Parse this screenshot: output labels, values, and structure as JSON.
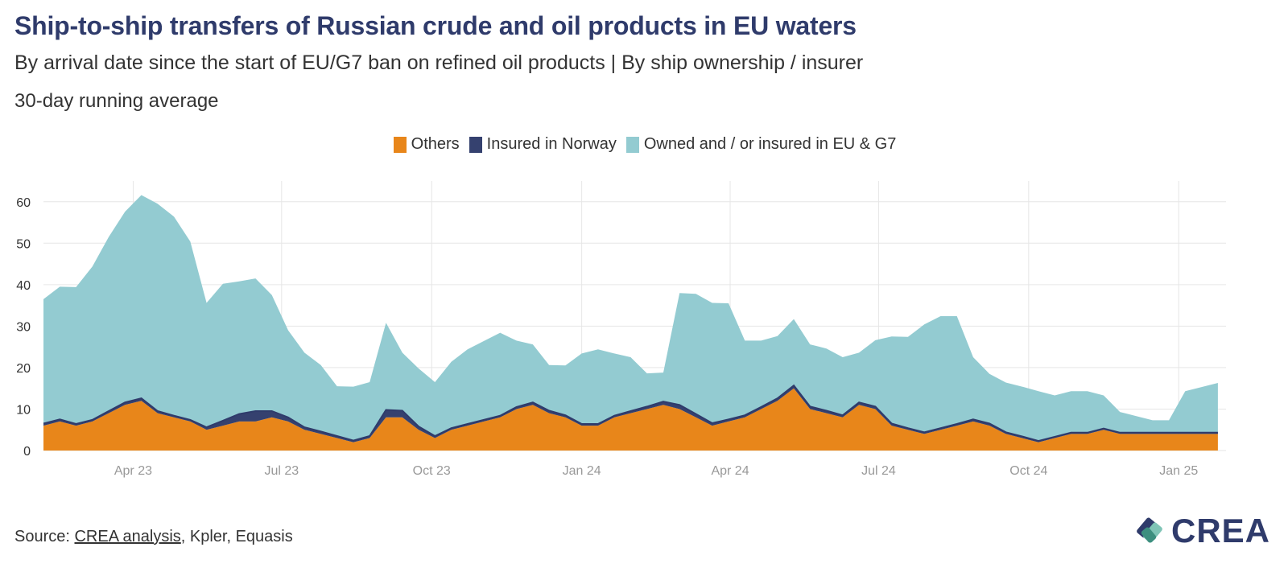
{
  "header": {
    "title": "Ship-to-ship transfers of Russian crude and oil products in EU waters",
    "subtitle": "By arrival date since the start of EU/G7 ban on refined oil products | By ship ownership / insurer",
    "note": "30-day running average"
  },
  "legend": [
    {
      "label": "Others",
      "color": "#e8861a"
    },
    {
      "label": "Insured in Norway",
      "color": "#35416f"
    },
    {
      "label": "Owned and / or insured in EU & G7",
      "color": "#93cbd1"
    }
  ],
  "footer": {
    "source_prefix": "Source: ",
    "source_link": "CREA analysis",
    "source_rest": ", Kpler, Equasis",
    "logo_text": "CREA"
  },
  "chart_data": {
    "type": "area",
    "stacked": true,
    "x": [
      "2023-02-05",
      "2023-02-15",
      "2023-02-25",
      "2023-03-07",
      "2023-03-17",
      "2023-03-27",
      "2023-04-06",
      "2023-04-16",
      "2023-04-26",
      "2023-05-06",
      "2023-05-16",
      "2023-05-26",
      "2023-06-05",
      "2023-06-15",
      "2023-06-25",
      "2023-07-05",
      "2023-07-15",
      "2023-07-25",
      "2023-08-04",
      "2023-08-14",
      "2023-08-24",
      "2023-09-03",
      "2023-09-13",
      "2023-09-23",
      "2023-10-03",
      "2023-10-13",
      "2023-10-23",
      "2023-11-02",
      "2023-11-12",
      "2023-11-22",
      "2023-12-02",
      "2023-12-12",
      "2023-12-22",
      "2024-01-01",
      "2024-01-11",
      "2024-01-21",
      "2024-01-31",
      "2024-02-10",
      "2024-02-20",
      "2024-03-01",
      "2024-03-11",
      "2024-03-21",
      "2024-03-31",
      "2024-04-10",
      "2024-04-20",
      "2024-04-30",
      "2024-05-10",
      "2024-05-20",
      "2024-05-30",
      "2024-06-09",
      "2024-06-19",
      "2024-06-29",
      "2024-07-09",
      "2024-07-19",
      "2024-07-29",
      "2024-08-08",
      "2024-08-18",
      "2024-08-28",
      "2024-09-07",
      "2024-09-17",
      "2024-09-27",
      "2024-10-07",
      "2024-10-17",
      "2024-10-27",
      "2024-11-06",
      "2024-11-16",
      "2024-11-26",
      "2024-12-06",
      "2024-12-16",
      "2024-12-26",
      "2025-01-05",
      "2025-01-15",
      "2025-01-25"
    ],
    "series": [
      {
        "name": "Others",
        "color": "#e8861a",
        "values": [
          6,
          7,
          6,
          7,
          9,
          11,
          12,
          9,
          8,
          7,
          5,
          6,
          7,
          7,
          8,
          7,
          5,
          4,
          3,
          2,
          3,
          8,
          8,
          5,
          3,
          5,
          6,
          7,
          8,
          10,
          11,
          9,
          8,
          6,
          6,
          8,
          9,
          10,
          11,
          10,
          8,
          6,
          7,
          8,
          10,
          12,
          15,
          10,
          9,
          8,
          11,
          10,
          6,
          5,
          4,
          5,
          6,
          7,
          6,
          4,
          3,
          2,
          3,
          4,
          4,
          5,
          4,
          4,
          4,
          4,
          4,
          4,
          4
        ]
      },
      {
        "name": "Insured in Norway",
        "color": "#35416f",
        "values": [
          0.5,
          0.5,
          0.4,
          0.4,
          0.5,
          0.6,
          0.6,
          0.5,
          0.4,
          0.4,
          0.6,
          1.2,
          1.8,
          2.5,
          1.5,
          1,
          0.6,
          0.6,
          0.5,
          0.4,
          0.5,
          1.8,
          1.6,
          0.8,
          0.5,
          0.4,
          0.4,
          0.4,
          0.4,
          0.5,
          0.6,
          0.6,
          0.5,
          0.4,
          0.4,
          0.4,
          0.5,
          0.6,
          0.8,
          1,
          0.8,
          0.6,
          0.5,
          0.5,
          0.5,
          0.6,
          0.7,
          0.6,
          0.6,
          0.5,
          0.6,
          0.6,
          0.5,
          0.4,
          0.4,
          0.4,
          0.4,
          0.5,
          0.5,
          0.4,
          0.4,
          0.3,
          0.3,
          0.3,
          0.3,
          0.3,
          0.3,
          0.3,
          0.3,
          0.3,
          0.3,
          0.3,
          0.3
        ]
      },
      {
        "name": "Owned and / or insured in EU & G7",
        "color": "#93cbd1",
        "values": [
          30,
          32,
          33,
          37,
          42,
          46,
          49,
          50,
          48,
          43,
          30,
          33,
          32,
          32,
          28,
          21,
          18,
          16,
          12,
          13,
          13,
          21,
          14,
          14,
          13,
          16,
          18,
          19,
          20,
          16,
          14,
          11,
          12,
          17,
          18,
          15,
          13,
          8,
          7,
          27,
          29,
          29,
          28,
          18,
          16,
          15,
          16,
          15,
          15,
          14,
          12,
          16,
          21,
          22,
          26,
          27,
          26,
          15,
          12,
          12,
          12,
          12,
          10,
          10,
          10,
          8,
          5,
          4,
          3,
          3,
          10,
          11,
          12
        ]
      }
    ],
    "x_ticks": [
      {
        "date": "2023-04-01",
        "label": "Apr 23"
      },
      {
        "date": "2023-07-01",
        "label": "Jul 23"
      },
      {
        "date": "2023-10-01",
        "label": "Oct 23"
      },
      {
        "date": "2024-01-01",
        "label": "Jan 24"
      },
      {
        "date": "2024-04-01",
        "label": "Apr 24"
      },
      {
        "date": "2024-07-01",
        "label": "Jul 24"
      },
      {
        "date": "2024-10-01",
        "label": "Oct 24"
      },
      {
        "date": "2025-01-01",
        "label": "Jan 25"
      }
    ],
    "y_ticks": [
      0,
      10,
      20,
      30,
      40,
      50,
      60
    ],
    "ylim": [
      0,
      65
    ],
    "xlim": [
      "2023-02-05",
      "2025-01-30"
    ],
    "grid": true,
    "legend_position": "top"
  }
}
